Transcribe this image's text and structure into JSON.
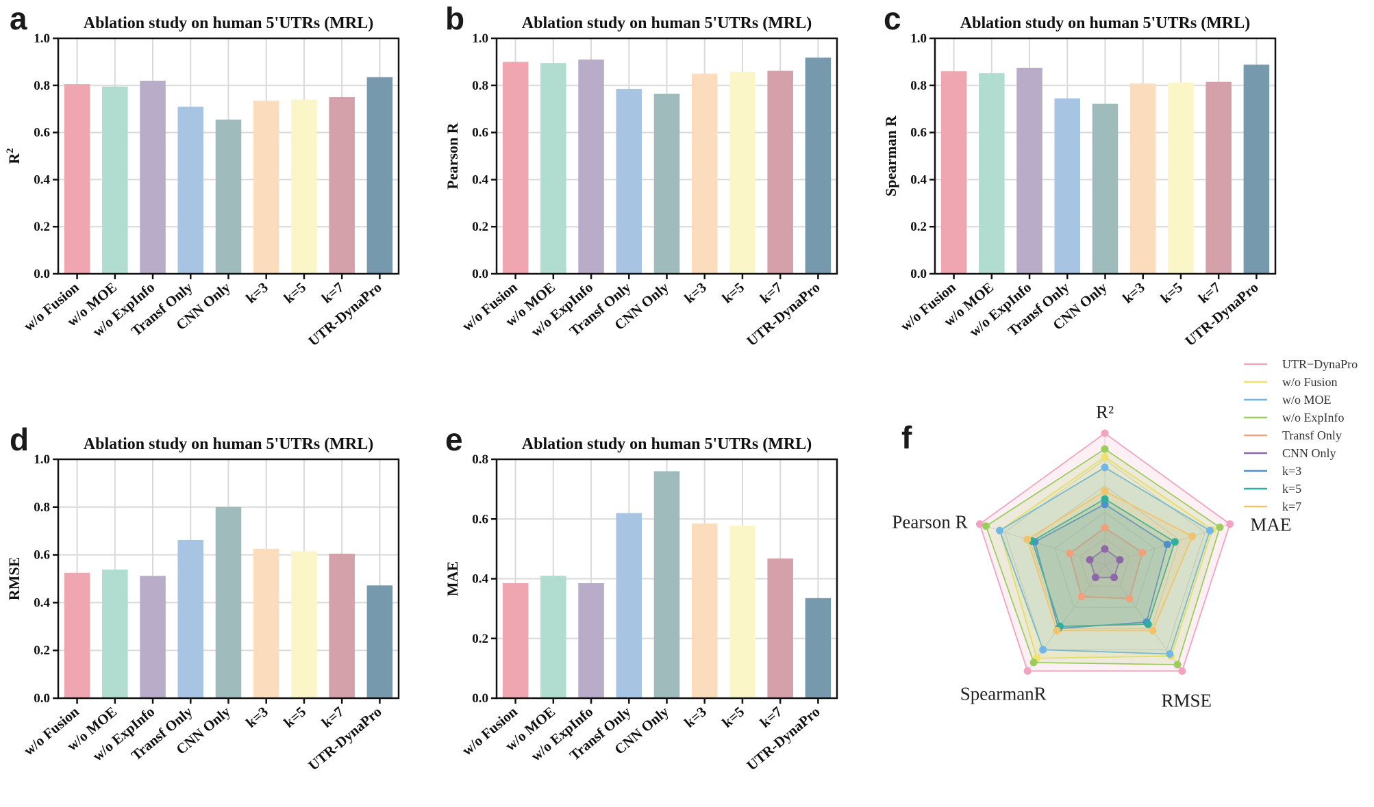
{
  "palette": [
    "#f0a6b1",
    "#b1ddd0",
    "#b8acc8",
    "#a7c5e3",
    "#9fbbbc",
    "#fbdcbc",
    "#faf6c8",
    "#d4a1ab",
    "#7699ad"
  ],
  "chart_data": [
    {
      "type": "bar",
      "letter": "a",
      "title": "Ablation study on human 5'UTRs (MRL)",
      "ylabel": "R",
      "ylabel_sup": "2",
      "categories": [
        "w/o Fusion",
        "w/o MOE",
        "w/o ExpInfo",
        "Transf Only",
        "CNN Only",
        "k=3",
        "k=5",
        "k=7",
        "UTR-DynaPro"
      ],
      "values": [
        0.805,
        0.795,
        0.82,
        0.71,
        0.655,
        0.735,
        0.74,
        0.75,
        0.835
      ],
      "ylim": [
        0,
        1.0
      ],
      "yticks": [
        "0.0",
        "0.2",
        "0.4",
        "0.6",
        "0.8",
        "1.0"
      ]
    },
    {
      "type": "bar",
      "letter": "b",
      "title": "Ablation study on human 5'UTRs (MRL)",
      "ylabel": "Pearson R",
      "categories": [
        "w/o Fusion",
        "w/o MOE",
        "w/o ExpInfo",
        "Transf Only",
        "CNN Only",
        "k=3",
        "k=5",
        "k=7",
        "UTR-DynaPro"
      ],
      "values": [
        0.9,
        0.895,
        0.91,
        0.785,
        0.765,
        0.85,
        0.858,
        0.862,
        0.918
      ],
      "ylim": [
        0,
        1.0
      ],
      "yticks": [
        "0.0",
        "0.2",
        "0.4",
        "0.6",
        "0.8",
        "1.0"
      ]
    },
    {
      "type": "bar",
      "letter": "c",
      "title": "Ablation study on human 5'UTRs (MRL)",
      "ylabel": "Spearman R",
      "categories": [
        "w/o Fusion",
        "w/o MOE",
        "w/o ExpInfo",
        "Transf Only",
        "CNN Only",
        "k=3",
        "k=5",
        "k=7",
        "UTR-DynaPro"
      ],
      "values": [
        0.86,
        0.852,
        0.875,
        0.745,
        0.722,
        0.808,
        0.812,
        0.815,
        0.888
      ],
      "ylim": [
        0,
        1.0
      ],
      "yticks": [
        "0.0",
        "0.2",
        "0.4",
        "0.6",
        "0.8",
        "1.0"
      ]
    },
    {
      "type": "bar",
      "letter": "d",
      "title": "Ablation study on human 5'UTRs (MRL)",
      "ylabel": "RMSE",
      "categories": [
        "w/o Fusion",
        "w/o MOE",
        "w/o ExpInfo",
        "Transf Only",
        "CNN Only",
        "k=3",
        "k=5",
        "k=7",
        "UTR-DynaPro"
      ],
      "values": [
        0.525,
        0.538,
        0.512,
        0.662,
        0.8,
        0.625,
        0.615,
        0.605,
        0.472
      ],
      "ylim": [
        0,
        1.0
      ],
      "yticks": [
        "0.0",
        "0.2",
        "0.4",
        "0.6",
        "0.8",
        "1.0"
      ]
    },
    {
      "type": "bar",
      "letter": "e",
      "title": "Ablation study on human 5'UTRs (MRL)",
      "ylabel": "MAE",
      "categories": [
        "w/o Fusion",
        "w/o MOE",
        "w/o ExpInfo",
        "Transf Only",
        "CNN Only",
        "k=3",
        "k=5",
        "k=7",
        "UTR-DynaPro"
      ],
      "values": [
        0.385,
        0.41,
        0.385,
        0.62,
        0.76,
        0.585,
        0.578,
        0.468,
        0.335
      ],
      "ylim": [
        0,
        0.8
      ],
      "yticks": [
        "0.0",
        "0.2",
        "0.4",
        "0.6",
        "0.8"
      ]
    },
    {
      "type": "radar",
      "letter": "f",
      "axes": [
        "R²",
        "MAE",
        "RMSE",
        "SpearmanR",
        "Pearson R"
      ],
      "series": [
        {
          "name": "UTR−DynaPro",
          "color": "#f2a3bf",
          "values": [
            1.0,
            1.0,
            1.0,
            1.0,
            1.0
          ]
        },
        {
          "name": "w/o Fusion",
          "color": "#ede36a",
          "values": [
            0.82,
            0.86,
            0.86,
            0.88,
            0.84
          ]
        },
        {
          "name": "w/o MOE",
          "color": "#6fb7e6",
          "values": [
            0.74,
            0.84,
            0.84,
            0.8,
            0.84
          ]
        },
        {
          "name": "w/o ExpInfo",
          "color": "#9ccc5e",
          "values": [
            0.88,
            0.92,
            0.94,
            0.92,
            0.95
          ]
        },
        {
          "name": "Transf Only",
          "color": "#f2a07a",
          "values": [
            0.28,
            0.3,
            0.32,
            0.3,
            0.28
          ]
        },
        {
          "name": "CNN Only",
          "color": "#8d67a8",
          "values": [
            0.12,
            0.12,
            0.12,
            0.12,
            0.12
          ]
        },
        {
          "name": "k=3",
          "color": "#4f8fd0",
          "values": [
            0.46,
            0.5,
            0.54,
            0.6,
            0.56
          ]
        },
        {
          "name": "k=5",
          "color": "#2fae9e",
          "values": [
            0.5,
            0.56,
            0.56,
            0.58,
            0.58
          ]
        },
        {
          "name": "k=7",
          "color": "#f1c36a",
          "values": [
            0.56,
            0.7,
            0.62,
            0.62,
            0.62
          ]
        }
      ]
    }
  ]
}
